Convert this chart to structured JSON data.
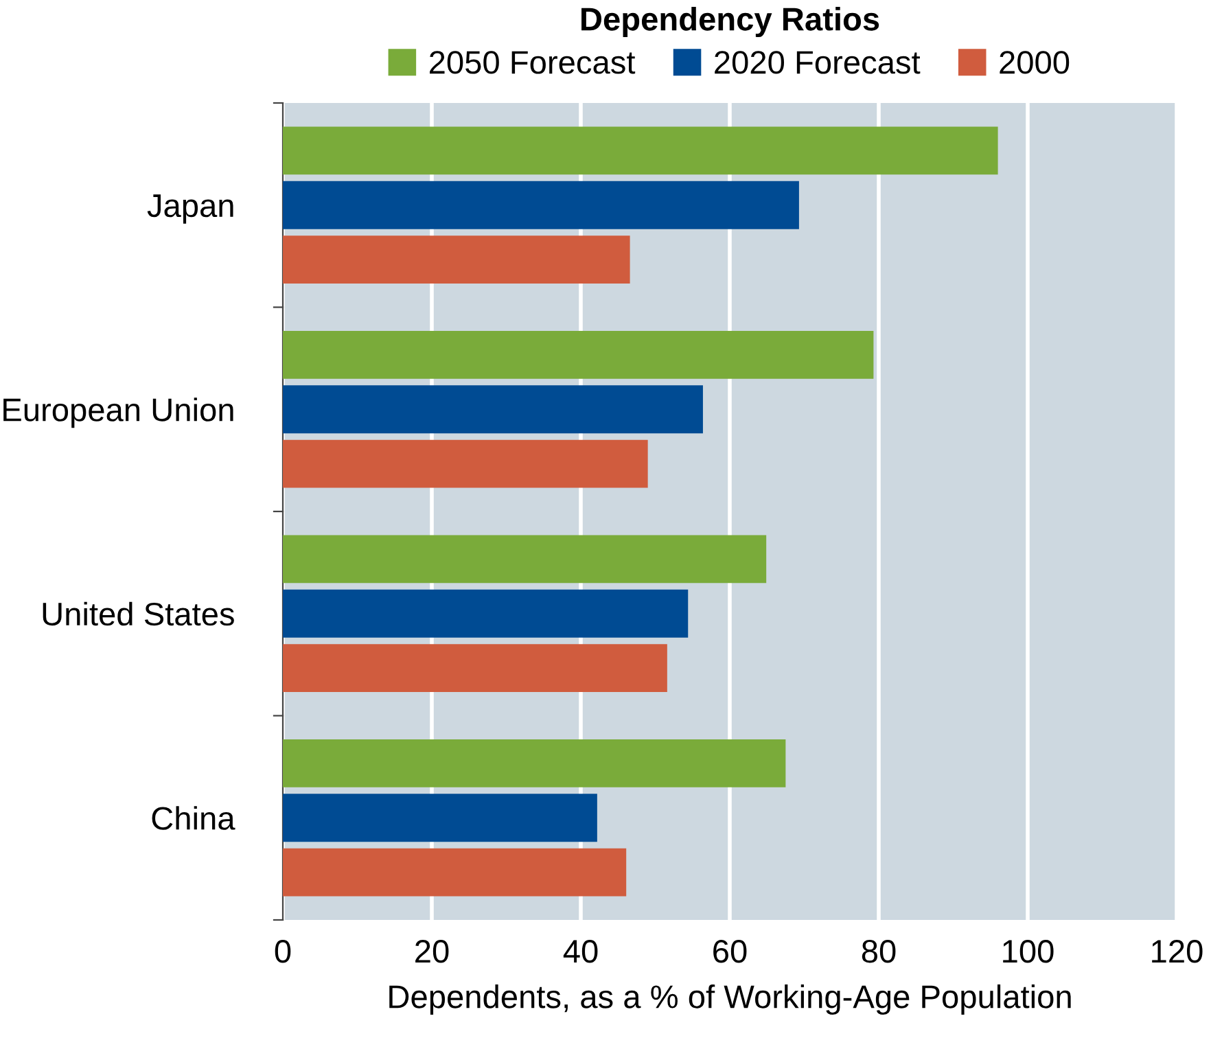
{
  "chart_data": {
    "type": "bar",
    "orientation": "horizontal",
    "title": "Dependency Ratios",
    "xlabel": "Dependents, as a % of Working-Age Population",
    "categories": [
      "Japan",
      "European Union",
      "United States",
      "China"
    ],
    "series": [
      {
        "name": "2050 Forecast",
        "color": "#7aab3a",
        "values": [
          96,
          79.3,
          64.9,
          67.5
        ]
      },
      {
        "name": "2020 Forecast",
        "color": "#004b93",
        "values": [
          69.3,
          56.4,
          54.4,
          42.2
        ]
      },
      {
        "name": "2000",
        "color": "#d05c3e",
        "values": [
          46.6,
          49.0,
          51.6,
          46.1
        ]
      }
    ],
    "xlim": [
      0,
      120
    ],
    "xticks": [
      0,
      20,
      40,
      60,
      80,
      100,
      120
    ],
    "grid": "x",
    "legend": "top"
  }
}
